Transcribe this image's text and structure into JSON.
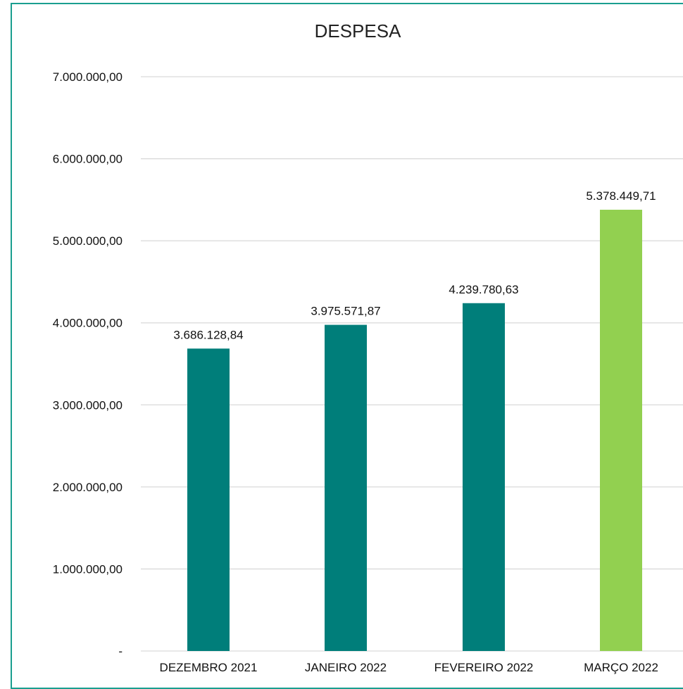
{
  "chart_data": {
    "type": "bar",
    "title": "DESPESA",
    "xlabel": "",
    "ylabel": "",
    "categories": [
      "DEZEMBRO 2021",
      "JANEIRO 2022",
      "FEVEREIRO 2022",
      "MARÇO 2022"
    ],
    "values": [
      3686128.84,
      3975571.87,
      4239780.63,
      5378449.71
    ],
    "data_labels": [
      "3.686.128,84",
      "3.975.571,87",
      "4.239.780,63",
      "5.378.449,71"
    ],
    "bar_colors": [
      "#007e7a",
      "#007e7a",
      "#007e7a",
      "#92d050"
    ],
    "ylim": [
      0,
      7000000
    ],
    "yticks": [
      0,
      1000000,
      2000000,
      3000000,
      4000000,
      5000000,
      6000000,
      7000000
    ],
    "ytick_labels": [
      "-",
      "1.000.000,00",
      "2.000.000,00",
      "3.000.000,00",
      "4.000.000,00",
      "5.000.000,00",
      "6.000.000,00",
      "7.000.000,00"
    ],
    "grid": true,
    "legend": "none"
  }
}
